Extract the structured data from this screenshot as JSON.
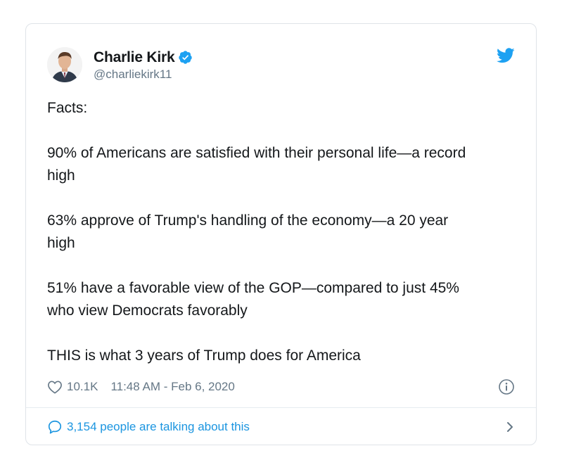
{
  "tweet": {
    "author": {
      "name": "Charlie Kirk",
      "handle": "@charliekirk11",
      "verified": true,
      "avatar_icon": "profile-photo"
    },
    "paragraphs": [
      "Facts:",
      "90% of Americans are satisfied with their personal life—a record\nhigh",
      "63% approve of Trump's handling of the economy—a 20 year\nhigh",
      "51% have a favorable view of the GOP—compared to just 45%\nwho view Democrats favorably",
      "THIS is what 3 years of Trump does for America"
    ],
    "likes": "10.1K",
    "timestamp": "11:48 AM - Feb 6, 2020",
    "conversation_label": "3,154 people are talking about this"
  },
  "icons": {
    "brand": "twitter-bird-icon",
    "verified": "verified-badge-icon",
    "like": "heart-icon",
    "info": "info-icon",
    "reply": "speech-bubble-icon",
    "chevron": "chevron-right-icon"
  },
  "colors": {
    "brand_blue": "#1da1f2",
    "link_blue": "#1b95e0",
    "text": "#14171a",
    "muted": "#657786",
    "border": "#dfe3e8"
  }
}
